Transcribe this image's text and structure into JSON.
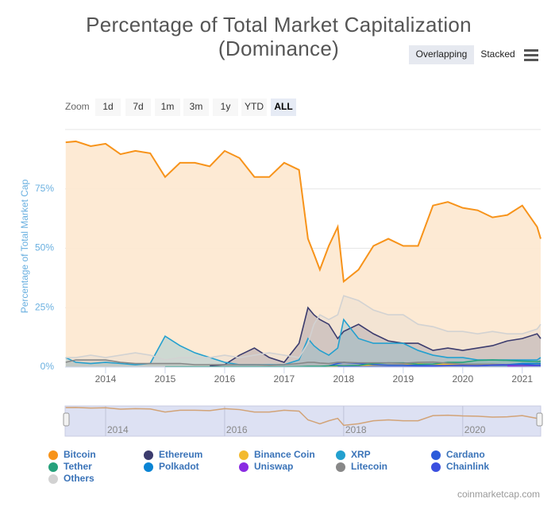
{
  "chart_data": {
    "type": "area",
    "title": "Percentage of Total Market Capitalization (Dominance)",
    "y_axis_label": "Percentage of Total Market Cap",
    "x": [
      2013.33,
      2013.5,
      2013.75,
      2014,
      2014.25,
      2014.5,
      2014.75,
      2015,
      2015.25,
      2015.5,
      2015.75,
      2016,
      2016.25,
      2016.5,
      2016.75,
      2017,
      2017.25,
      2017.4,
      2017.5,
      2017.6,
      2017.75,
      2017.9,
      2018,
      2018.25,
      2018.5,
      2018.75,
      2019,
      2019.25,
      2019.5,
      2019.75,
      2020,
      2020.25,
      2020.5,
      2020.75,
      2021,
      2021.25,
      2021.31
    ],
    "xlim": [
      2013.32,
      2021.31
    ],
    "xticks": [
      2014,
      2015,
      2016,
      2017,
      2018,
      2019,
      2020,
      2021
    ],
    "ylim": [
      0,
      100
    ],
    "yticks": [
      {
        "value": 0,
        "label": "0%"
      },
      {
        "value": 25,
        "label": "25%"
      },
      {
        "value": 50,
        "label": "50%"
      },
      {
        "value": 75,
        "label": "75%"
      }
    ],
    "grid": true,
    "series": [
      {
        "name": "Bitcoin",
        "color": "#f7931a",
        "values": [
          94.6,
          95,
          93,
          94,
          89.6,
          91,
          90,
          80,
          86,
          86,
          84.5,
          91,
          88,
          80,
          80,
          86,
          83,
          54,
          47.6,
          41,
          51,
          59,
          36,
          41,
          51,
          54,
          51,
          51,
          68,
          69.5,
          67,
          66,
          63,
          64,
          68,
          59,
          54
        ]
      },
      {
        "name": "Ethereum",
        "color": "#3c3c6e",
        "values": [
          null,
          null,
          null,
          null,
          null,
          null,
          null,
          null,
          null,
          null,
          0.5,
          1,
          5,
          8,
          4,
          2,
          10,
          25,
          22,
          20,
          18,
          12,
          15,
          18,
          14,
          11,
          10,
          10,
          7,
          8,
          7,
          8,
          9,
          11,
          12,
          14,
          12
        ]
      },
      {
        "name": "Binance Coin",
        "color": "#f3ba2f",
        "values": [
          null,
          null,
          null,
          null,
          null,
          null,
          null,
          null,
          null,
          null,
          null,
          null,
          null,
          null,
          null,
          null,
          null,
          null,
          null,
          0.3,
          0.3,
          0.4,
          0.5,
          0.6,
          0.8,
          0.9,
          1,
          1.4,
          1.2,
          1.1,
          1,
          1,
          1,
          1,
          1.2,
          1.5,
          1.5
        ]
      },
      {
        "name": "XRP",
        "color": "#23a0cf",
        "values": [
          4,
          2,
          1.5,
          2,
          1.5,
          1,
          1.5,
          13,
          9,
          6,
          4,
          2,
          1,
          1,
          1,
          1,
          3,
          12,
          9,
          7,
          5,
          8,
          20,
          12,
          10,
          10,
          10,
          7,
          5,
          4,
          4,
          3,
          3,
          3,
          3,
          3,
          4
        ]
      },
      {
        "name": "Cardano",
        "color": "#2a5ada",
        "values": [
          null,
          null,
          null,
          null,
          null,
          null,
          null,
          null,
          null,
          null,
          null,
          null,
          null,
          null,
          null,
          null,
          null,
          null,
          null,
          null,
          0.5,
          1.5,
          2,
          1.5,
          1,
          0.8,
          0.8,
          0.7,
          0.6,
          0.6,
          0.6,
          0.6,
          0.8,
          0.8,
          1,
          1.5,
          1.5
        ]
      },
      {
        "name": "Tether",
        "color": "#26a17b",
        "values": [
          null,
          null,
          null,
          null,
          null,
          null,
          null,
          0.1,
          0.1,
          0.1,
          0.1,
          0.1,
          0.1,
          0.1,
          0.1,
          0.1,
          0.2,
          0.3,
          0.3,
          0.3,
          0.5,
          0.6,
          0.5,
          0.7,
          1.5,
          1.8,
          1.8,
          1.2,
          1.3,
          2,
          2,
          2.8,
          3,
          2.8,
          2.5,
          2.3,
          2.5
        ]
      },
      {
        "name": "Polkadot",
        "color": "#0a84d4",
        "values": [
          null,
          null,
          null,
          null,
          null,
          null,
          null,
          null,
          null,
          null,
          null,
          null,
          null,
          null,
          null,
          null,
          null,
          null,
          null,
          null,
          null,
          null,
          null,
          null,
          null,
          null,
          null,
          null,
          null,
          null,
          null,
          null,
          null,
          1,
          1.5,
          1.5,
          1.5
        ]
      },
      {
        "name": "Uniswap",
        "color": "#8a2be2",
        "values": [
          null,
          null,
          null,
          null,
          null,
          null,
          null,
          null,
          null,
          null,
          null,
          null,
          null,
          null,
          null,
          null,
          null,
          null,
          null,
          null,
          null,
          null,
          null,
          null,
          null,
          null,
          null,
          null,
          null,
          null,
          null,
          null,
          null,
          0.5,
          0.5,
          0.7,
          0.7
        ]
      },
      {
        "name": "Litecoin",
        "color": "#888888",
        "values": [
          2,
          3,
          3,
          3,
          2,
          1.5,
          1.5,
          1.5,
          1.5,
          1,
          1,
          1,
          1,
          1,
          0.8,
          1,
          1.5,
          2,
          2,
          1.7,
          1.5,
          2,
          2,
          1.8,
          1.8,
          1.8,
          1.6,
          2,
          2.1,
          1.6,
          1.2,
          1.2,
          1.2,
          1,
          0.8,
          0.8,
          0.9
        ]
      },
      {
        "name": "Chainlink",
        "color": "#3a4fe0",
        "values": [
          null,
          null,
          null,
          null,
          null,
          null,
          null,
          null,
          null,
          null,
          null,
          null,
          null,
          null,
          null,
          null,
          null,
          null,
          null,
          null,
          null,
          0.1,
          0.1,
          0.1,
          0.1,
          0.1,
          0.1,
          0.2,
          0.4,
          0.6,
          0.6,
          0.5,
          0.8,
          1,
          1,
          0.7,
          0.7
        ]
      },
      {
        "name": "Others",
        "color": "#d2d2d2",
        "values": [
          4,
          4,
          5,
          4,
          5,
          6,
          5,
          3,
          4,
          4,
          4,
          5,
          4,
          5,
          6,
          5,
          4,
          10,
          18,
          22,
          20,
          22,
          30,
          28,
          24,
          22,
          22,
          18,
          17,
          15,
          15,
          14,
          15,
          14,
          14,
          16,
          18
        ]
      }
    ],
    "navigator": {
      "xticks": [
        2014,
        2016,
        2018,
        2020
      ]
    }
  },
  "controls": {
    "zoom_label": "Zoom",
    "zoom_buttons": [
      "1d",
      "7d",
      "1m",
      "3m",
      "1y",
      "YTD",
      "ALL"
    ],
    "zoom_selected": 6,
    "views": [
      "Overlapping",
      "Stacked"
    ],
    "view_selected": 0
  },
  "credit": "coinmarketcap.com"
}
